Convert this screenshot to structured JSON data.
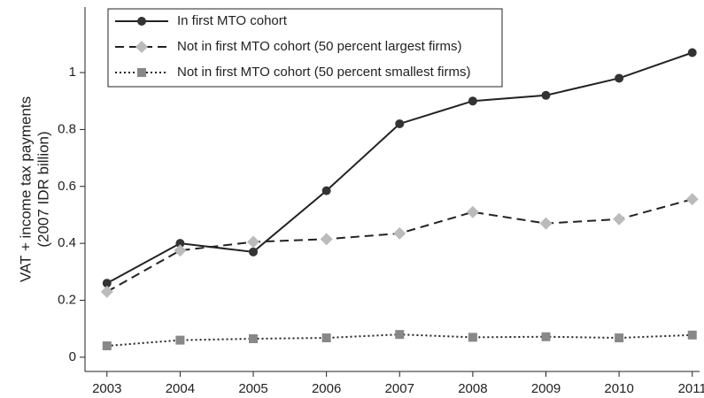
{
  "chart_data": {
    "type": "line",
    "ylabel": [
      "VAT + income tax payments",
      "(2007 IDR billion)"
    ],
    "x": [
      2003,
      2004,
      2005,
      2006,
      2007,
      2008,
      2009,
      2010,
      2011
    ],
    "xlim": [
      2002.7,
      2011.1
    ],
    "xticks": [
      2003,
      2004,
      2005,
      2006,
      2007,
      2008,
      2009,
      2010,
      2011
    ],
    "ylim": [
      -0.05,
      1.23
    ],
    "yticks": [
      0,
      0.2,
      0.4,
      0.6,
      0.8,
      1
    ],
    "legend": "top-left",
    "series": [
      {
        "name": "In first MTO cohort",
        "color": "#333333",
        "marker": "circle",
        "dash": "solid",
        "values": [
          0.26,
          0.4,
          0.37,
          0.585,
          0.82,
          0.9,
          0.92,
          0.98,
          1.07
        ]
      },
      {
        "name": "Not in first MTO cohort (50 percent largest firms)",
        "color": "#bbbbbb",
        "marker": "diamond",
        "dash": "dashed",
        "values": [
          0.23,
          0.375,
          0.405,
          0.415,
          0.435,
          0.51,
          0.47,
          0.485,
          0.555
        ]
      },
      {
        "name": "Not in first MTO cohort (50 percent smallest firms)",
        "color": "#888888",
        "marker": "square",
        "dash": "dotted",
        "values": [
          0.04,
          0.06,
          0.065,
          0.068,
          0.08,
          0.07,
          0.072,
          0.068,
          0.078
        ]
      }
    ]
  }
}
